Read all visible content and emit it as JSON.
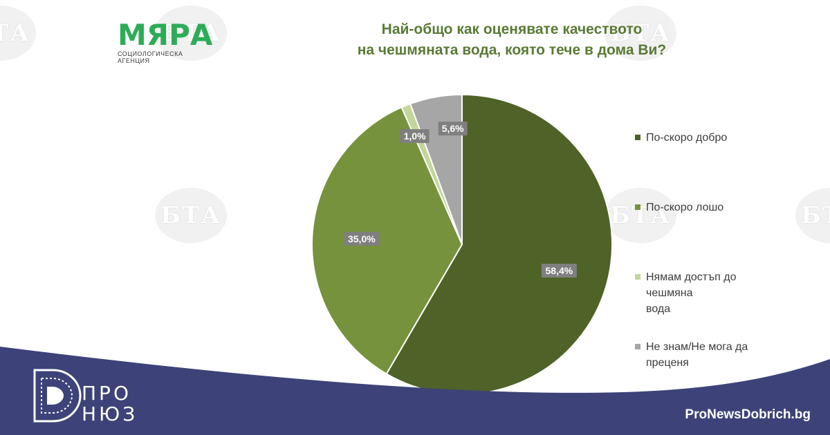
{
  "branding": {
    "logo_name": "МЯРА",
    "logo_subtitle": "СОЦИОЛОГИЧЕСКА АГЕНЦИЯ",
    "watermark_text": "БТА",
    "footer_logo_line1": "ПРО",
    "footer_logo_line2": "НЮЗ",
    "footer_site": "ProNewsDobrich.bg",
    "logo_color": "#2eab57",
    "footer_color": "#3d4378"
  },
  "chart_data": {
    "type": "pie",
    "title_lines": [
      "Най-общо как оценявате качеството",
      "на чешмяната вода, която тече в дома Ви?"
    ],
    "title_color": "#5a7a35",
    "legend_position": "right",
    "slices": [
      {
        "label_lines": [
          "По-скоро добро"
        ],
        "value": 58.4,
        "display": "58,4%",
        "color": "#4f6228"
      },
      {
        "label_lines": [
          "По-скоро лошо"
        ],
        "value": 35.0,
        "display": "35,0%",
        "color": "#76923c"
      },
      {
        "label_lines": [
          "Нямам достъп до чешмяна",
          "вода"
        ],
        "value": 1.0,
        "display": "1,0%",
        "color": "#c3d69b"
      },
      {
        "label_lines": [
          "Не знам/Не мога да",
          "преценя"
        ],
        "value": 5.6,
        "display": "5,6%",
        "color": "#a6a6a6"
      }
    ]
  }
}
